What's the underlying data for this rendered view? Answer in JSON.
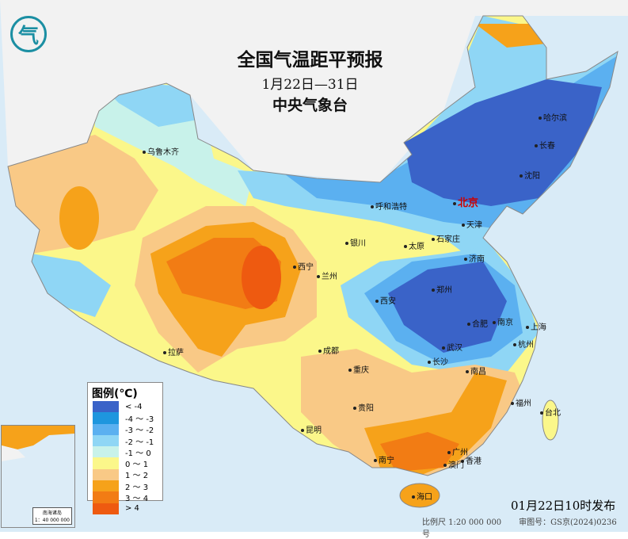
{
  "header": {
    "title": "全国气温距平预报",
    "period": "1月22日—31日",
    "agency": "中央气象台"
  },
  "logo": {
    "text": "气",
    "icon": "cma-logo"
  },
  "legend": {
    "title": "图例(℃)",
    "items": [
      {
        "label": "< -4",
        "color": "#3a63c8"
      },
      {
        "label": "-4 ～ -3",
        "color": "#1e96de"
      },
      {
        "label": "-3 ～ -2",
        "color": "#5bb0f0"
      },
      {
        "label": "-2 ～ -1",
        "color": "#8fd6f5"
      },
      {
        "label": "-1 ～ 0",
        "color": "#c8f2ea"
      },
      {
        "label": "0 ～ 1",
        "color": "#fbf78a"
      },
      {
        "label": "1 ～ 2",
        "color": "#f9c986"
      },
      {
        "label": "2 ～ 3",
        "color": "#f6a21a"
      },
      {
        "label": "3 ～ 4",
        "color": "#f27c14"
      },
      {
        "label": "> 4",
        "color": "#ee5a10"
      }
    ]
  },
  "cities": [
    {
      "name": "乌鲁木齐"
    },
    {
      "name": "哈尔滨"
    },
    {
      "name": "长春"
    },
    {
      "name": "沈阳"
    },
    {
      "name": "北京"
    },
    {
      "name": "天津"
    },
    {
      "name": "呼和浩特"
    },
    {
      "name": "石家庄"
    },
    {
      "name": "太原"
    },
    {
      "name": "银川"
    },
    {
      "name": "济南"
    },
    {
      "name": "西宁"
    },
    {
      "name": "兰州"
    },
    {
      "name": "郑州"
    },
    {
      "name": "西安"
    },
    {
      "name": "合肥"
    },
    {
      "name": "南京"
    },
    {
      "name": "上海"
    },
    {
      "name": "武汉"
    },
    {
      "name": "杭州"
    },
    {
      "name": "拉萨"
    },
    {
      "name": "成都"
    },
    {
      "name": "重庆"
    },
    {
      "name": "长沙"
    },
    {
      "name": "南昌"
    },
    {
      "name": "福州"
    },
    {
      "name": "台北"
    },
    {
      "name": "贵阳"
    },
    {
      "name": "昆明"
    },
    {
      "name": "南宁"
    },
    {
      "name": "广州"
    },
    {
      "name": "香港"
    },
    {
      "name": "澳门"
    },
    {
      "name": "海口"
    }
  ],
  "inset": {
    "label": "南海诸岛",
    "scale": "1：40 000 000"
  },
  "footer": {
    "issued": "01月22日10时发布",
    "scale": "比例尺 1:20 000 000",
    "map_no": "审图号：GS京(2024)0236号"
  }
}
